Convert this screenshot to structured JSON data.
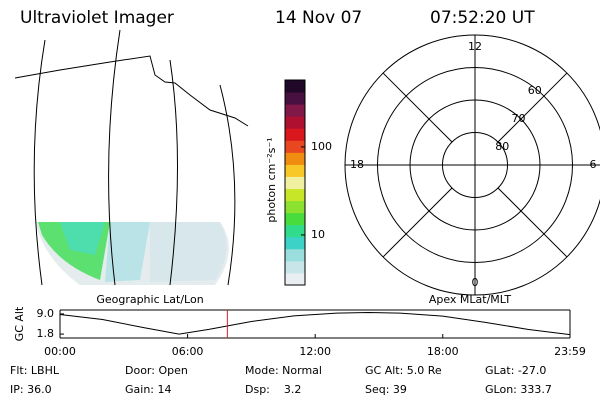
{
  "header": {
    "title": "Ultraviolet Imager",
    "date": "14 Nov 07",
    "time": "07:52:20 UT"
  },
  "colorbar": {
    "label": "photon cm⁻²s⁻¹",
    "scale": "log",
    "range": [
      2.7,
      575
    ],
    "ticks": [
      10,
      100
    ],
    "colors": [
      "#e8eef2",
      "#c8e6ea",
      "#9adede",
      "#3cd2c8",
      "#30dc8c",
      "#48dc3c",
      "#8ce030",
      "#c8e628",
      "#f0f0a0",
      "#f8c828",
      "#f08c10",
      "#e84820",
      "#d8181c",
      "#b01030",
      "#801848",
      "#481040",
      "#200828"
    ]
  },
  "polar": {
    "rlim": [
      90,
      50
    ],
    "rings": [
      80,
      70,
      60
    ],
    "hours": [
      12,
      18,
      6,
      0
    ]
  },
  "chart_data": {
    "type": "line",
    "ylabel": "GC Alt",
    "annotations": [
      "Geographic Lat/Lon",
      "Apex MLat/MLT"
    ],
    "x": [
      0,
      2,
      4,
      5.6,
      7,
      9,
      11,
      13,
      14.5,
      16,
      18,
      20,
      22,
      23.983
    ],
    "values": [
      8.8,
      7.0,
      4.0,
      1.8,
      3.5,
      6.3,
      8.3,
      9.3,
      9.5,
      9.3,
      8.2,
      6.0,
      3.5,
      1.6
    ],
    "color": "#000000",
    "marker_x": 7.87,
    "marker_color": "#d02020",
    "xlim": [
      0,
      23.983
    ],
    "ylim": [
      0.4,
      10.4
    ],
    "xticks": [
      {
        "value": 0,
        "label": "00:00"
      },
      {
        "value": 6,
        "label": "06:00"
      },
      {
        "value": 12,
        "label": "12:00"
      },
      {
        "value": 18,
        "label": "18:00"
      },
      {
        "value": 23.983,
        "label": "23:59"
      }
    ],
    "yticks": [
      {
        "value": 9.0,
        "label": "9.0"
      },
      {
        "value": 1.8,
        "label": "1.8"
      }
    ]
  },
  "footer": {
    "rows": [
      [
        "Flt: LBHL",
        "Door: Open",
        "Mode: Normal",
        "GC Alt: 5.0 Re",
        "GLat: -27.0"
      ],
      [
        "IP: 36.0",
        "Gain: 14",
        "Dsp:    3.2",
        "Seq: 39",
        "GLon: 333.7"
      ]
    ]
  }
}
